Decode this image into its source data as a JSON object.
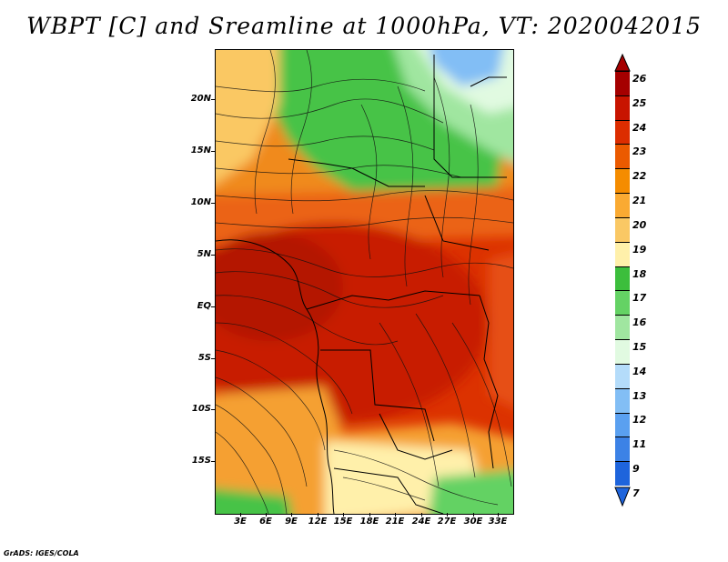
{
  "title": "WBPT [C] and Sreamline at 1000hPa, VT: 2020042015",
  "footer": "GrADS: IGES/COLA",
  "lat_axis": [
    "20N",
    "15N",
    "10N",
    "5N",
    "EQ",
    "5S",
    "10S",
    "15S"
  ],
  "lon_axis": [
    "3E",
    "6E",
    "9E",
    "12E",
    "15E",
    "18E",
    "21E",
    "24E",
    "27E",
    "30E",
    "33E"
  ],
  "colorbar": {
    "labels": [
      "26",
      "25",
      "24",
      "23",
      "22",
      "21",
      "20",
      "19",
      "18",
      "17",
      "16",
      "15",
      "14",
      "13",
      "12",
      "11",
      "9",
      "7"
    ],
    "colors": [
      "#a50000",
      "#c81400",
      "#dc2d00",
      "#eb5a00",
      "#f58c00",
      "#faaa32",
      "#fac864",
      "#fff0aa",
      "#3cbe3c",
      "#64d264",
      "#a0e6a0",
      "#e1fae1",
      "#b4dcfa",
      "#82bef5",
      "#5aa0f0",
      "#3c82e6",
      "#1e64dc"
    ]
  },
  "colors": {
    "hot": "#d22800",
    "warm": "#f58c00",
    "mild": "#fac864",
    "cool_green": "#46c346",
    "light_green": "#a0e6a0",
    "blue": "#82bef5"
  }
}
